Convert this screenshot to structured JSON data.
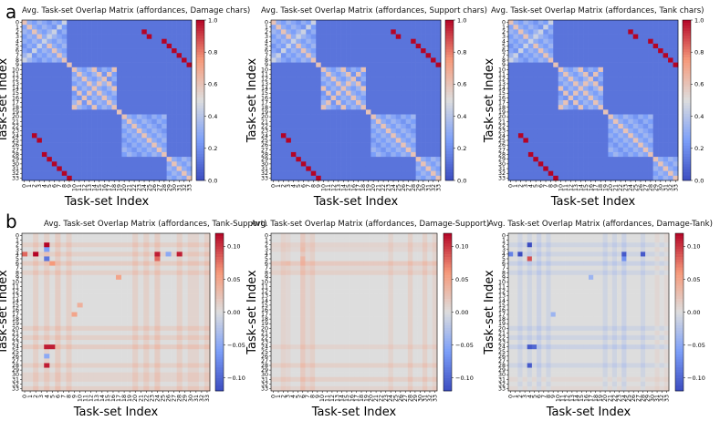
{
  "figure": {
    "panel_labels": [
      "a",
      "b"
    ]
  },
  "chart_data": [
    {
      "type": "heatmap",
      "panel": "a",
      "title": "Avg. Task-set Overlap Matrix (affordances, Damage chars)",
      "xlabel": "Task-set Index",
      "ylabel": "Task-set Index",
      "n": 34,
      "vmin": 0,
      "vmax": 1,
      "colorbar_ticks": [
        "0.0",
        "0.2",
        "0.4",
        "0.6",
        "0.8",
        "1.0"
      ],
      "colorbar_values": [
        0,
        0.2,
        0.4,
        0.6,
        0.8,
        1.0
      ],
      "tick_labels": [
        "0",
        "1",
        "2",
        "3",
        "4",
        "5",
        "6",
        "7",
        "8",
        "9",
        "10",
        "11",
        "12",
        "13",
        "14",
        "15",
        "16",
        "17",
        "18",
        "19",
        "20",
        "21",
        "22",
        "23",
        "24",
        "25",
        "26",
        "27",
        "28",
        "29",
        "30",
        "31",
        "32",
        "33"
      ],
      "block_groups": [
        [
          0,
          1,
          2,
          3,
          4,
          5,
          6,
          7,
          8
        ],
        [
          10,
          11,
          12,
          13,
          14,
          15,
          16,
          17,
          18
        ],
        [
          20,
          21,
          22,
          23,
          24,
          25,
          26,
          27,
          28
        ],
        [
          29,
          30,
          31,
          32,
          33
        ]
      ],
      "max_pairs": [
        [
          9,
          33
        ],
        [
          7,
          31
        ],
        [
          8,
          32
        ],
        [
          6,
          30
        ],
        [
          5,
          29
        ],
        [
          3,
          25
        ],
        [
          4,
          28
        ],
        [
          2,
          24
        ]
      ],
      "background_value": 0.12
    },
    {
      "type": "heatmap",
      "panel": "a",
      "title": "Avg. Task-set Overlap Matrix (affordances, Support chars)",
      "xlabel": "Task-set Index",
      "ylabel": "Task-set Index",
      "n": 34,
      "vmin": 0,
      "vmax": 1,
      "colorbar_ticks": [
        "0.0",
        "0.2",
        "0.4",
        "0.6",
        "0.8",
        "1.0"
      ],
      "colorbar_values": [
        0,
        0.2,
        0.4,
        0.6,
        0.8,
        1.0
      ],
      "tick_labels": [
        "0",
        "1",
        "2",
        "3",
        "4",
        "5",
        "6",
        "7",
        "8",
        "9",
        "10",
        "11",
        "12",
        "13",
        "14",
        "15",
        "16",
        "17",
        "18",
        "19",
        "20",
        "21",
        "22",
        "23",
        "24",
        "25",
        "26",
        "27",
        "28",
        "29",
        "30",
        "31",
        "32",
        "33"
      ],
      "block_groups": [
        [
          0,
          1,
          2,
          3,
          4,
          5,
          6,
          7,
          8
        ],
        [
          10,
          11,
          12,
          13,
          14,
          15,
          16,
          17,
          18
        ],
        [
          20,
          21,
          22,
          23,
          24,
          25,
          26,
          27,
          28
        ],
        [
          29,
          30,
          31,
          32,
          33
        ]
      ],
      "max_pairs": [
        [
          9,
          33
        ],
        [
          7,
          31
        ],
        [
          8,
          32
        ],
        [
          6,
          30
        ],
        [
          5,
          29
        ],
        [
          3,
          25
        ],
        [
          4,
          28
        ],
        [
          2,
          24
        ]
      ],
      "background_value": 0.12
    },
    {
      "type": "heatmap",
      "panel": "a",
      "title": "Avg. Task-set Overlap Matrix (affordances, Tank chars)",
      "xlabel": "Task-set Index",
      "ylabel": "Task-set Index",
      "n": 34,
      "vmin": 0,
      "vmax": 1,
      "colorbar_ticks": [
        "0.0",
        "0.2",
        "0.4",
        "0.6",
        "0.8",
        "1.0"
      ],
      "colorbar_values": [
        0,
        0.2,
        0.4,
        0.6,
        0.8,
        1.0
      ],
      "tick_labels": [
        "0",
        "1",
        "2",
        "3",
        "4",
        "5",
        "6",
        "7",
        "8",
        "9",
        "10",
        "11",
        "12",
        "13",
        "14",
        "15",
        "16",
        "17",
        "18",
        "19",
        "20",
        "21",
        "22",
        "23",
        "24",
        "25",
        "26",
        "27",
        "28",
        "29",
        "30",
        "31",
        "32",
        "33"
      ],
      "block_groups": [
        [
          0,
          1,
          2,
          3,
          4,
          5,
          6,
          7,
          8
        ],
        [
          10,
          11,
          12,
          13,
          14,
          15,
          16,
          17,
          18
        ],
        [
          20,
          21,
          22,
          23,
          24,
          25,
          26,
          27,
          28
        ],
        [
          29,
          30,
          31,
          32,
          33
        ]
      ],
      "max_pairs": [
        [
          9,
          33
        ],
        [
          7,
          31
        ],
        [
          8,
          32
        ],
        [
          6,
          30
        ],
        [
          5,
          29
        ],
        [
          3,
          25
        ],
        [
          4,
          28
        ],
        [
          2,
          24
        ]
      ],
      "background_value": 0.12
    },
    {
      "type": "heatmap",
      "panel": "b",
      "title": "Avg. Task-set Overlap Matrix (affordances, Tank-Support)",
      "xlabel": "Task-set Index",
      "ylabel": "Task-set Index",
      "n": 34,
      "vmin": -0.12,
      "vmax": 0.12,
      "colorbar_ticks": [
        "0.10",
        "0.05",
        "0.00",
        "−0.05",
        "−0.10"
      ],
      "colorbar_values": [
        0.1,
        0.05,
        0.0,
        -0.05,
        -0.1
      ],
      "tick_labels": [
        "0",
        "1",
        "2",
        "3",
        "4",
        "5",
        "6",
        "7",
        "8",
        "9",
        "10",
        "11",
        "12",
        "13",
        "14",
        "15",
        "16",
        "17",
        "18",
        "19",
        "20",
        "21",
        "22",
        "23",
        "24",
        "25",
        "26",
        "27",
        "28",
        "29",
        "30",
        "31",
        "32",
        "33"
      ],
      "highlights": [
        [
          4,
          2,
          0.12
        ],
        [
          2,
          4,
          0.12
        ],
        [
          4,
          0,
          0.08
        ],
        [
          5,
          4,
          -0.09
        ],
        [
          3,
          4,
          -0.06
        ],
        [
          4,
          24,
          0.11
        ],
        [
          4,
          28,
          0.11
        ],
        [
          24,
          4,
          0.11
        ],
        [
          28,
          4,
          0.11
        ],
        [
          26,
          4,
          -0.05
        ],
        [
          24,
          5,
          0.11
        ],
        [
          5,
          24,
          0.08
        ],
        [
          4,
          26,
          -0.05
        ],
        [
          6,
          5,
          0.06
        ],
        [
          17,
          9,
          0.05
        ],
        [
          9,
          17,
          0.05
        ],
        [
          15,
          10,
          0.04
        ]
      ],
      "row_tints": [
        [
          2,
          0.02
        ],
        [
          4,
          0.02
        ],
        [
          6,
          0.025
        ],
        [
          8,
          0.02
        ],
        [
          20,
          0.02
        ],
        [
          22,
          0.02
        ],
        [
          24,
          0.025
        ],
        [
          28,
          0.02
        ],
        [
          30,
          0.015
        ],
        [
          31,
          0.015
        ],
        [
          33,
          0.02
        ]
      ],
      "col_tints": [
        [
          2,
          0.02
        ],
        [
          4,
          0.02
        ],
        [
          6,
          0.025
        ],
        [
          8,
          0.02
        ],
        [
          20,
          0.02
        ],
        [
          22,
          0.02
        ],
        [
          24,
          0.025
        ],
        [
          28,
          0.02
        ],
        [
          30,
          0.015
        ],
        [
          31,
          0.015
        ],
        [
          33,
          0.02
        ]
      ]
    },
    {
      "type": "heatmap",
      "panel": "b",
      "title": "Avg. Task-set Overlap Matrix (affordances, Damage-Support)",
      "xlabel": "Task-set Index",
      "ylabel": "Task-set Index",
      "n": 34,
      "vmin": -0.12,
      "vmax": 0.12,
      "colorbar_ticks": [
        "0.10",
        "0.05",
        "0.00",
        "−0.05",
        "−0.10"
      ],
      "colorbar_values": [
        0.1,
        0.05,
        0.0,
        -0.05,
        -0.1
      ],
      "tick_labels": [
        "0",
        "1",
        "2",
        "3",
        "4",
        "5",
        "6",
        "7",
        "8",
        "9",
        "10",
        "11",
        "12",
        "13",
        "14",
        "15",
        "16",
        "17",
        "18",
        "19",
        "20",
        "21",
        "22",
        "23",
        "24",
        "25",
        "26",
        "27",
        "28",
        "29",
        "30",
        "31",
        "32",
        "33"
      ],
      "highlights": [
        [
          6,
          6,
          0.04
        ],
        [
          5,
          6,
          0.035
        ],
        [
          3,
          6,
          0.03
        ],
        [
          6,
          3,
          0.03
        ],
        [
          28,
          6,
          0.03
        ],
        [
          6,
          28,
          0.03
        ]
      ],
      "row_tints": [
        [
          2,
          0.015
        ],
        [
          3,
          0.01
        ],
        [
          6,
          0.03
        ],
        [
          7,
          0.01
        ],
        [
          8,
          0.02
        ],
        [
          24,
          0.015
        ],
        [
          28,
          0.02
        ],
        [
          31,
          0.02
        ],
        [
          33,
          0.015
        ]
      ],
      "col_tints": [
        [
          2,
          0.015
        ],
        [
          3,
          0.01
        ],
        [
          6,
          0.03
        ],
        [
          7,
          0.01
        ],
        [
          8,
          0.02
        ],
        [
          24,
          0.015
        ],
        [
          28,
          0.02
        ],
        [
          31,
          0.02
        ],
        [
          33,
          0.015
        ]
      ]
    },
    {
      "type": "heatmap",
      "panel": "b",
      "title": "Avg. Task-set Overlap Matrix (affordances, Damage-Tank)",
      "xlabel": "Task-set Index",
      "ylabel": "Task-set Index",
      "n": 34,
      "vmin": -0.12,
      "vmax": 0.12,
      "colorbar_ticks": [
        "0.10",
        "0.05",
        "0.00",
        "−0.05",
        "−0.10"
      ],
      "colorbar_values": [
        0.1,
        0.05,
        0.0,
        -0.05,
        -0.1
      ],
      "tick_labels": [
        "0",
        "1",
        "2",
        "3",
        "4",
        "5",
        "6",
        "7",
        "8",
        "9",
        "10",
        "11",
        "12",
        "13",
        "14",
        "15",
        "16",
        "17",
        "18",
        "19",
        "20",
        "21",
        "22",
        "23",
        "24",
        "25",
        "26",
        "27",
        "28",
        "29",
        "30",
        "31",
        "32",
        "33"
      ],
      "highlights": [
        [
          4,
          2,
          -0.12
        ],
        [
          2,
          4,
          -0.12
        ],
        [
          4,
          0,
          -0.08
        ],
        [
          5,
          4,
          0.09
        ],
        [
          4,
          24,
          -0.11
        ],
        [
          4,
          28,
          -0.11
        ],
        [
          24,
          4,
          -0.11
        ],
        [
          28,
          4,
          -0.11
        ],
        [
          24,
          5,
          -0.1
        ],
        [
          5,
          24,
          -0.07
        ],
        [
          17,
          9,
          -0.04
        ],
        [
          9,
          17,
          -0.04
        ]
      ],
      "row_tints": [
        [
          2,
          -0.015
        ],
        [
          4,
          -0.015
        ],
        [
          6,
          -0.02
        ],
        [
          8,
          -0.015
        ],
        [
          20,
          -0.015
        ],
        [
          22,
          -0.015
        ],
        [
          24,
          -0.02
        ],
        [
          28,
          -0.015
        ],
        [
          31,
          0.01
        ],
        [
          33,
          0.01
        ]
      ],
      "col_tints": [
        [
          2,
          -0.015
        ],
        [
          4,
          -0.015
        ],
        [
          6,
          -0.02
        ],
        [
          8,
          -0.015
        ],
        [
          20,
          -0.015
        ],
        [
          22,
          -0.015
        ],
        [
          24,
          -0.02
        ],
        [
          28,
          -0.015
        ],
        [
          31,
          0.01
        ],
        [
          33,
          0.01
        ]
      ]
    }
  ]
}
